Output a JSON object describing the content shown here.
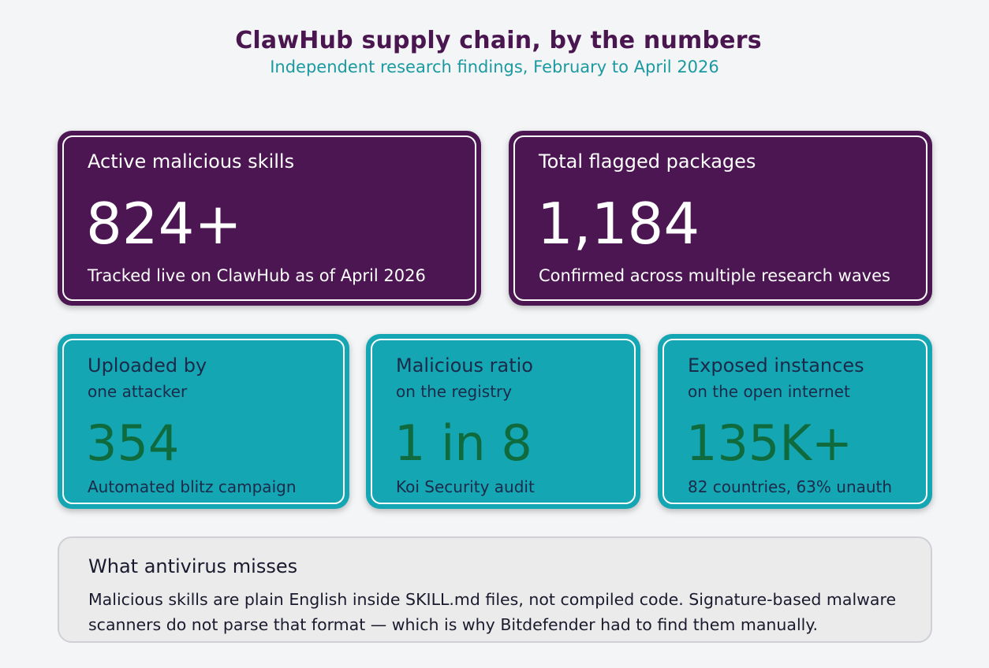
{
  "header": {
    "title": "ClawHub supply chain, by the numbers",
    "subtitle": "Independent research findings, February to April 2026"
  },
  "colors": {
    "purple_card": "#4b1652",
    "teal_card": "#15a6b3",
    "gray_card": "#ebebec",
    "title": "#4a1650",
    "subtitle": "#1a9aa0",
    "teal_value": "#0f6b3e"
  },
  "stats": {
    "malicious_skills": {
      "label": "Active malicious skills",
      "value": "824+",
      "note": "Tracked live on ClawHub as of April 2026"
    },
    "flagged_packages": {
      "label": "Total flagged packages",
      "value": "1,184",
      "note": "Confirmed across multiple research waves"
    },
    "uploaded_by": {
      "label": "Uploaded by",
      "sub": "one attacker",
      "value": "354",
      "note": "Automated blitz campaign"
    },
    "malicious_ratio": {
      "label": "Malicious ratio",
      "sub": "on the registry",
      "value": "1 in 8",
      "note": "Koi Security audit"
    },
    "exposed_instances": {
      "label": "Exposed instances",
      "sub": "on the open internet",
      "value": "135K+",
      "note": "82 countries, 63% unauth"
    }
  },
  "antivirus": {
    "heading": "What antivirus misses",
    "body": "Malicious skills are plain English inside SKILL.md files, not compiled code. Signature-based malware scanners do not parse that format — which is why Bitdefender had to find them manually."
  }
}
